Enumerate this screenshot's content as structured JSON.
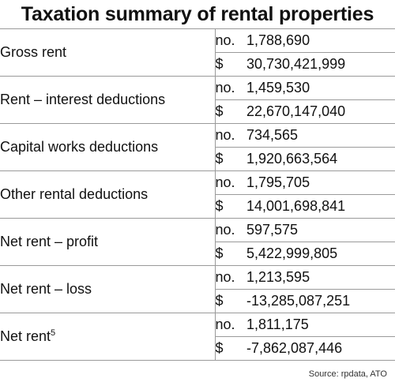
{
  "title": "Taxation summary of rental properties",
  "source": "Source: rpdata, ATO",
  "rows": [
    {
      "label": "Gross rent",
      "sup": "",
      "count_unit": "no.",
      "count": "1,788,690",
      "amount_unit": "$",
      "amount": "30,730,421,999"
    },
    {
      "label": "Rent – interest deductions",
      "sup": "",
      "count_unit": "no.",
      "count": "1,459,530",
      "amount_unit": "$",
      "amount": "22,670,147,040"
    },
    {
      "label": "Capital works deductions",
      "sup": "",
      "count_unit": "no.",
      "count": "734,565",
      "amount_unit": "$",
      "amount": "1,920,663,564"
    },
    {
      "label": "Other rental deductions",
      "sup": "",
      "count_unit": "no.",
      "count": "1,795,705",
      "amount_unit": "$",
      "amount": "14,001,698,841"
    },
    {
      "label": "Net rent – profit",
      "sup": "",
      "count_unit": "no.",
      "count": "597,575",
      "amount_unit": "$",
      "amount": "5,422,999,805"
    },
    {
      "label": "Net rent – loss",
      "sup": "",
      "count_unit": "no.",
      "count": "1,213,595",
      "amount_unit": "$",
      "amount": "-13,285,087,251"
    },
    {
      "label": "Net rent",
      "sup": "5",
      "count_unit": "no.",
      "count": "1,811,175",
      "amount_unit": "$",
      "amount": "-7,862,087,446"
    }
  ]
}
